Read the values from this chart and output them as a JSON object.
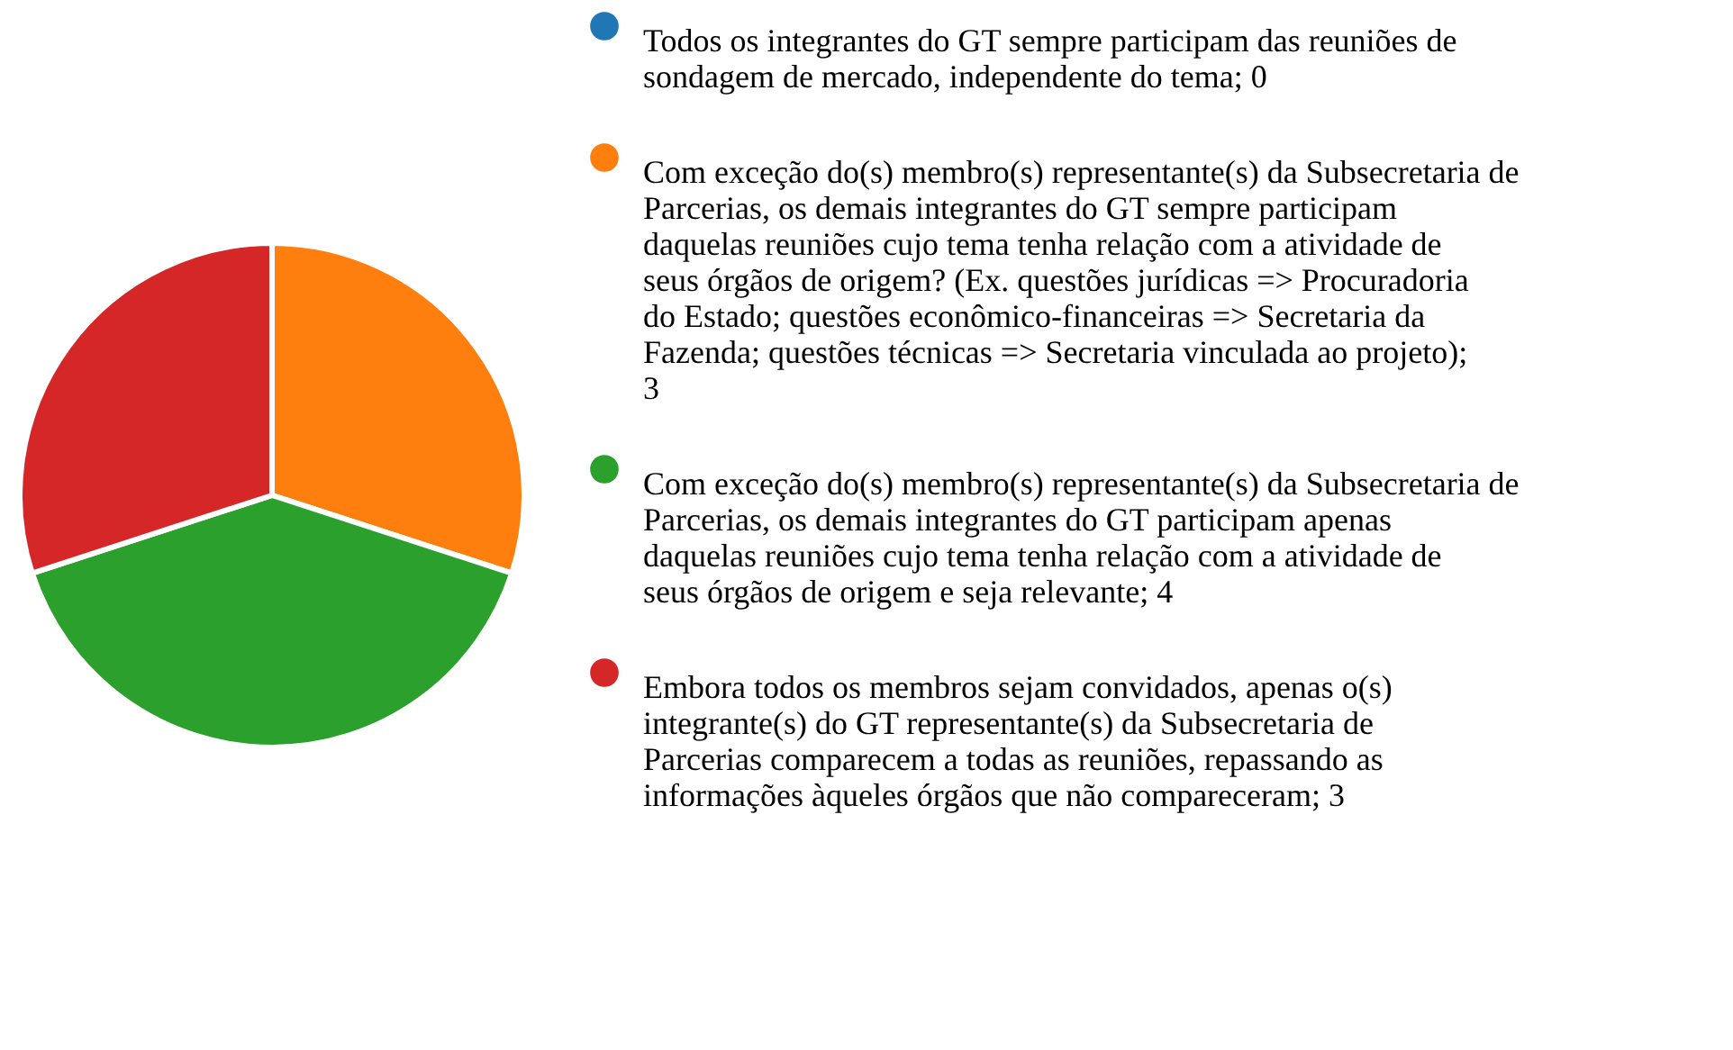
{
  "chart_data": {
    "type": "pie",
    "categories": [
      "Todos os integrantes do GT sempre participam das reuniões de sondagem de mercado, independente do tema; 0",
      "Com exceção do(s) membro(s) representante(s) da Subsecretaria de Parcerias, os demais integrantes do GT sempre participam daquelas reuniões cujo tema tenha relação com a atividade de seus órgãos de origem? (Ex. questões jurídicas => Procuradoria do Estado; questões econômico-financeiras => Secretaria da Fazenda; questões técnicas => Secretaria vinculada ao projeto); 3",
      "Com exceção do(s) membro(s) representante(s) da Subsecretaria de Parcerias, os demais integrantes do GT participam apenas daquelas reuniões cujo tema tenha relação com a atividade de seus órgãos de origem e seja relevante; 4",
      "Embora todos os membros sejam convidados, apenas o(s) integrante(s) do GT representante(s) da Subsecretaria de Parcerias comparecem a todas as reuniões, repassando as informações àqueles órgãos que não compareceram; 3"
    ],
    "values": [
      0,
      3,
      4,
      3
    ],
    "colors": [
      "#1f77b4",
      "#ff7f0e",
      "#2ca02c",
      "#d62728"
    ],
    "legend": "right"
  }
}
